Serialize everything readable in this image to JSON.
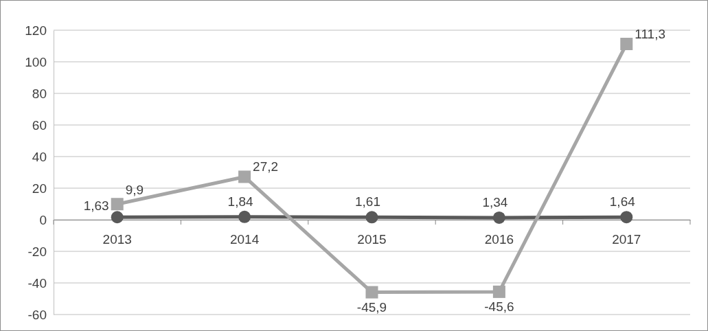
{
  "chart_data": {
    "type": "line",
    "categories": [
      "2013",
      "2014",
      "2015",
      "2016",
      "2017"
    ],
    "series": [
      {
        "color": "#595959",
        "marker": "circle",
        "values": [
          1.63,
          1.84,
          1.61,
          1.34,
          1.64
        ],
        "value_labels": [
          "1,63",
          "1,84",
          "1,61",
          "1,34",
          "1,64"
        ]
      },
      {
        "color": "#a6a6a6",
        "marker": "square",
        "values": [
          9.9,
          27.2,
          -45.9,
          -45.6,
          111.3
        ],
        "value_labels": [
          "9,9",
          "27,2",
          "-45,9",
          "-45,6",
          "111,3"
        ]
      }
    ],
    "ylim": [
      -60,
      120
    ],
    "yticks": [
      -60,
      -40,
      -20,
      0,
      20,
      40,
      60,
      80,
      100,
      120
    ],
    "grid": "y",
    "line_style": "solid"
  }
}
